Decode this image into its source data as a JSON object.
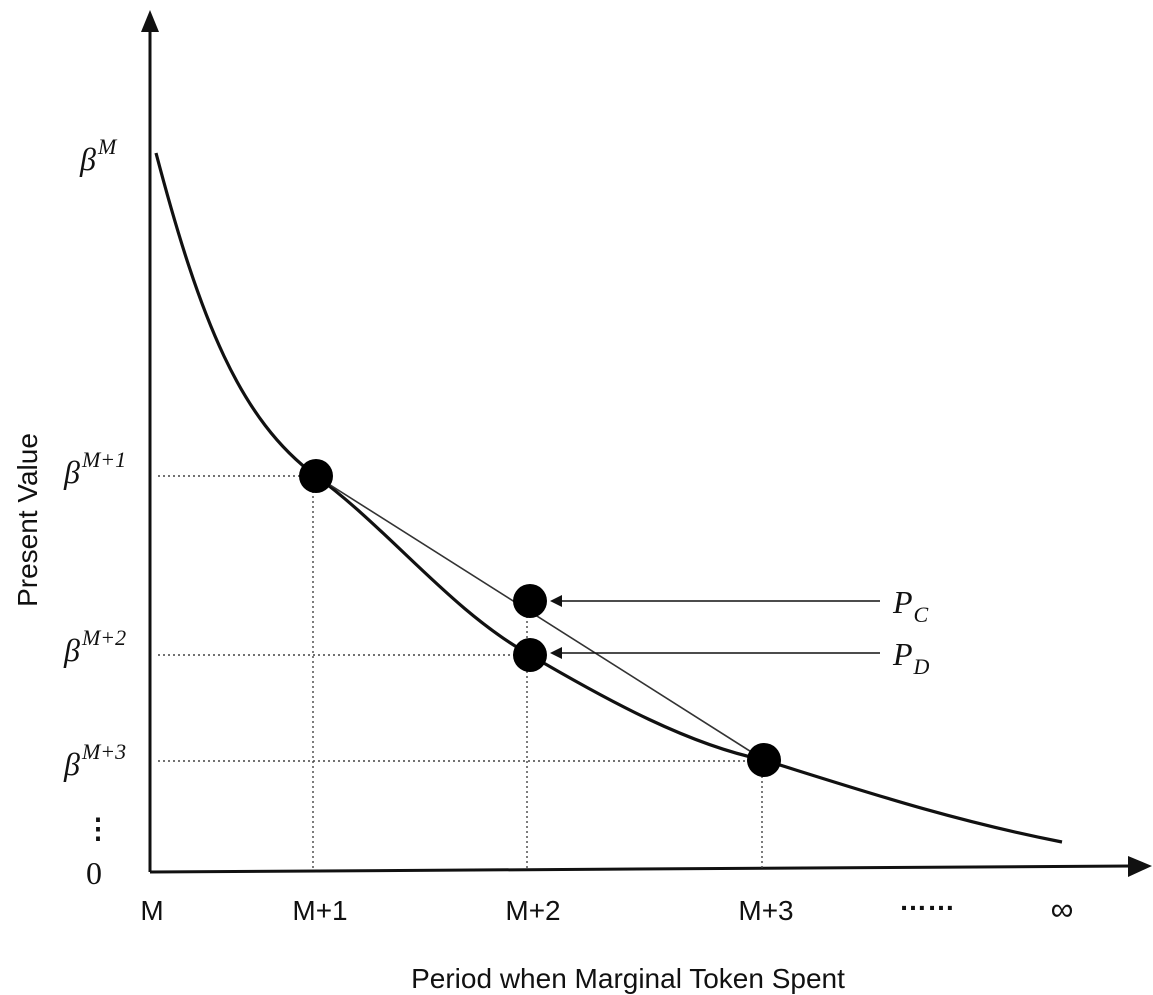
{
  "chart_data": {
    "type": "line",
    "xlabel": "Period when Marginal Token Spent",
    "ylabel": "Present Value",
    "x_ticks": [
      "M",
      "M+1",
      "M+2",
      "M+3",
      "……",
      "∞"
    ],
    "y_ticks": [
      {
        "base": "β",
        "exp": "M"
      },
      {
        "base": "β",
        "exp": "M+1"
      },
      {
        "base": "β",
        "exp": "M+2"
      },
      {
        "base": "β",
        "exp": "M+3"
      },
      {
        "base": "⋮",
        "exp": ""
      },
      {
        "base": "0",
        "exp": ""
      }
    ],
    "points": [
      {
        "x": "M+1",
        "value": "β^(M+1)"
      },
      {
        "x": "M+2",
        "value": "β^(M+2)",
        "label": "P_D"
      },
      {
        "x": "M+3",
        "value": "β^(M+3)"
      },
      {
        "x": "M+2",
        "value": "chord midpoint",
        "label": "P_C"
      }
    ],
    "annotations": [
      {
        "base": "P",
        "sub": "C"
      },
      {
        "base": "P",
        "sub": "D"
      }
    ],
    "grid": false,
    "legend": "none"
  }
}
